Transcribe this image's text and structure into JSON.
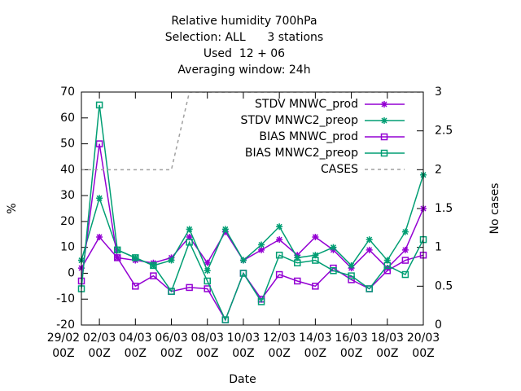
{
  "chart_data": {
    "type": "line",
    "title": [
      "Relative humidity 700hPa",
      "Selection: ALL      3 stations",
      "Used  12 + 06",
      "Averaging window: 24h"
    ],
    "xlabel": "Date",
    "ylabel": "%",
    "y2label": "No cases",
    "x": [
      1,
      2,
      3,
      4,
      5,
      6,
      7,
      8,
      9,
      10,
      11,
      12,
      13,
      14,
      15,
      16,
      17,
      18,
      19,
      20
    ],
    "xlim": [
      1,
      20
    ],
    "xticks": [
      {
        "value": 0,
        "label": "29/02\n00Z"
      },
      {
        "value": 2,
        "label": "02/03\n00Z"
      },
      {
        "value": 4,
        "label": "04/03\n00Z"
      },
      {
        "value": 6,
        "label": "06/03\n00Z"
      },
      {
        "value": 8,
        "label": "08/03\n00Z"
      },
      {
        "value": 10,
        "label": "10/03\n00Z"
      },
      {
        "value": 12,
        "label": "12/03\n00Z"
      },
      {
        "value": 14,
        "label": "14/03\n00Z"
      },
      {
        "value": 16,
        "label": "16/03\n00Z"
      },
      {
        "value": 18,
        "label": "18/03\n00Z"
      },
      {
        "value": 20,
        "label": "20/03\n00Z"
      }
    ],
    "ylim": [
      -20,
      70
    ],
    "yticks": [
      -20,
      -10,
      0,
      10,
      20,
      30,
      40,
      50,
      60,
      70
    ],
    "y2lim": [
      0,
      3
    ],
    "y2ticks": [
      0,
      0.5,
      1,
      1.5,
      2,
      2.5,
      3
    ],
    "legend": "top-right",
    "series": [
      {
        "name": "STDV MNWC_prod",
        "color": "#9400d3",
        "marker": "star",
        "values": [
          2,
          14,
          6,
          5,
          4,
          6,
          14,
          4,
          16,
          5,
          9,
          13,
          7,
          14,
          9,
          2,
          9,
          2,
          9,
          25
        ]
      },
      {
        "name": "STDV MNWC2_preop",
        "color": "#009e73",
        "marker": "star",
        "values": [
          5,
          29,
          9,
          6,
          3,
          5,
          17,
          1,
          17,
          5,
          11,
          18,
          6,
          7,
          10,
          3,
          13,
          5,
          16,
          38
        ]
      },
      {
        "name": "BIAS MNWC_prod",
        "color": "#9400d3",
        "marker": "square",
        "values": [
          -3,
          50,
          6,
          -5,
          -1,
          -7,
          -5.5,
          -6,
          -18,
          0,
          -10,
          -0.5,
          -3,
          -5,
          2,
          -2.5,
          -6,
          1,
          5,
          7
        ]
      },
      {
        "name": "BIAS MNWC2_preop",
        "color": "#009e73",
        "marker": "square",
        "values": [
          -6,
          65,
          9,
          6,
          3,
          -7,
          12,
          -3,
          -18,
          0,
          -11,
          7,
          4,
          5,
          1,
          -1,
          -6,
          3,
          -0.5,
          13
        ]
      },
      {
        "name": "CASES",
        "color": "#a0a0a0",
        "dashed": true,
        "axis": "y2",
        "values": [
          2,
          2,
          2,
          2,
          2,
          2,
          3,
          3,
          3,
          3,
          3,
          3,
          3,
          3,
          3,
          3,
          3,
          3,
          3,
          3
        ]
      }
    ]
  }
}
